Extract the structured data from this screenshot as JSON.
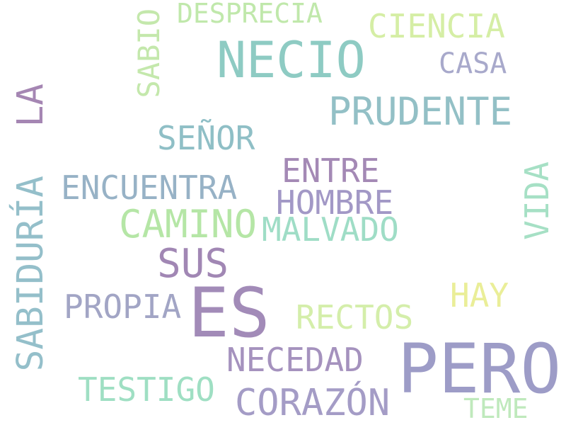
{
  "words": [
    {
      "text": "NECIO",
      "color": "#8ecbc3"
    },
    {
      "text": "PERO",
      "color": "#9d9cc7"
    },
    {
      "text": "ES",
      "color": "#a28bb8"
    },
    {
      "text": "CAMINO",
      "color": "#b5e6a6"
    },
    {
      "text": "CORAZÓN",
      "color": "#a49cc6"
    },
    {
      "text": "SUS",
      "color": "#a187b4"
    },
    {
      "text": "PRUDENTE",
      "color": "#93c0c6"
    },
    {
      "text": "SABIDURÍA",
      "color": "#94bfca"
    },
    {
      "text": "LA",
      "color": "#a586b3"
    },
    {
      "text": "ENCUENTRA",
      "color": "#97b2c6"
    },
    {
      "text": "HOMBRE",
      "color": "#a298c6"
    },
    {
      "text": "ENTRE",
      "color": "#a489b5"
    },
    {
      "text": "MALVADO",
      "color": "#9fddc6"
    },
    {
      "text": "NECEDAD",
      "color": "#a592be"
    },
    {
      "text": "PROPIA",
      "color": "#a2a5c5"
    },
    {
      "text": "RECTOS",
      "color": "#d4eeaa"
    },
    {
      "text": "TESTIGO",
      "color": "#9fdfc3"
    },
    {
      "text": "CIENCIA",
      "color": "#d5eea5"
    },
    {
      "text": "SEÑOR",
      "color": "#8fbfc6"
    },
    {
      "text": "DESPRECIA",
      "color": "#c0e8ab"
    },
    {
      "text": "SABIO",
      "color": "#c4e8ac"
    },
    {
      "text": "VIDA",
      "color": "#a6e0c5"
    },
    {
      "text": "HAY",
      "color": "#eaee98"
    },
    {
      "text": "CASA",
      "color": "#a8a9cb"
    },
    {
      "text": "TEME",
      "color": "#bfe9bc"
    }
  ]
}
